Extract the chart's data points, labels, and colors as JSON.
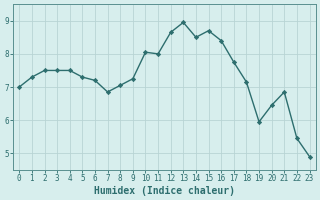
{
  "x": [
    0,
    1,
    2,
    3,
    4,
    5,
    6,
    7,
    8,
    9,
    10,
    11,
    12,
    13,
    14,
    15,
    16,
    17,
    18,
    19,
    20,
    21,
    22,
    23
  ],
  "y": [
    7.0,
    7.3,
    7.5,
    7.5,
    7.5,
    7.3,
    7.2,
    6.85,
    7.05,
    7.25,
    8.05,
    8.0,
    8.65,
    8.95,
    8.5,
    8.7,
    8.4,
    7.75,
    7.15,
    5.95,
    6.45,
    6.85,
    5.45,
    4.9
  ],
  "line_color": "#2d6e6e",
  "marker": "D",
  "markersize": 2.2,
  "linewidth": 1.0,
  "xlabel": "Humidex (Indice chaleur)",
  "xlabel_fontsize": 7,
  "bg_color": "#d7eeed",
  "grid_color": "#b8d4d4",
  "xlim": [
    -0.5,
    23.5
  ],
  "ylim": [
    4.5,
    9.5
  ],
  "yticks": [
    5,
    6,
    7,
    8,
    9
  ],
  "xticks": [
    0,
    1,
    2,
    3,
    4,
    5,
    6,
    7,
    8,
    9,
    10,
    11,
    12,
    13,
    14,
    15,
    16,
    17,
    18,
    19,
    20,
    21,
    22,
    23
  ],
  "tick_color": "#2d6e6e",
  "tick_fontsize": 5.5,
  "spine_color": "#5a9090"
}
